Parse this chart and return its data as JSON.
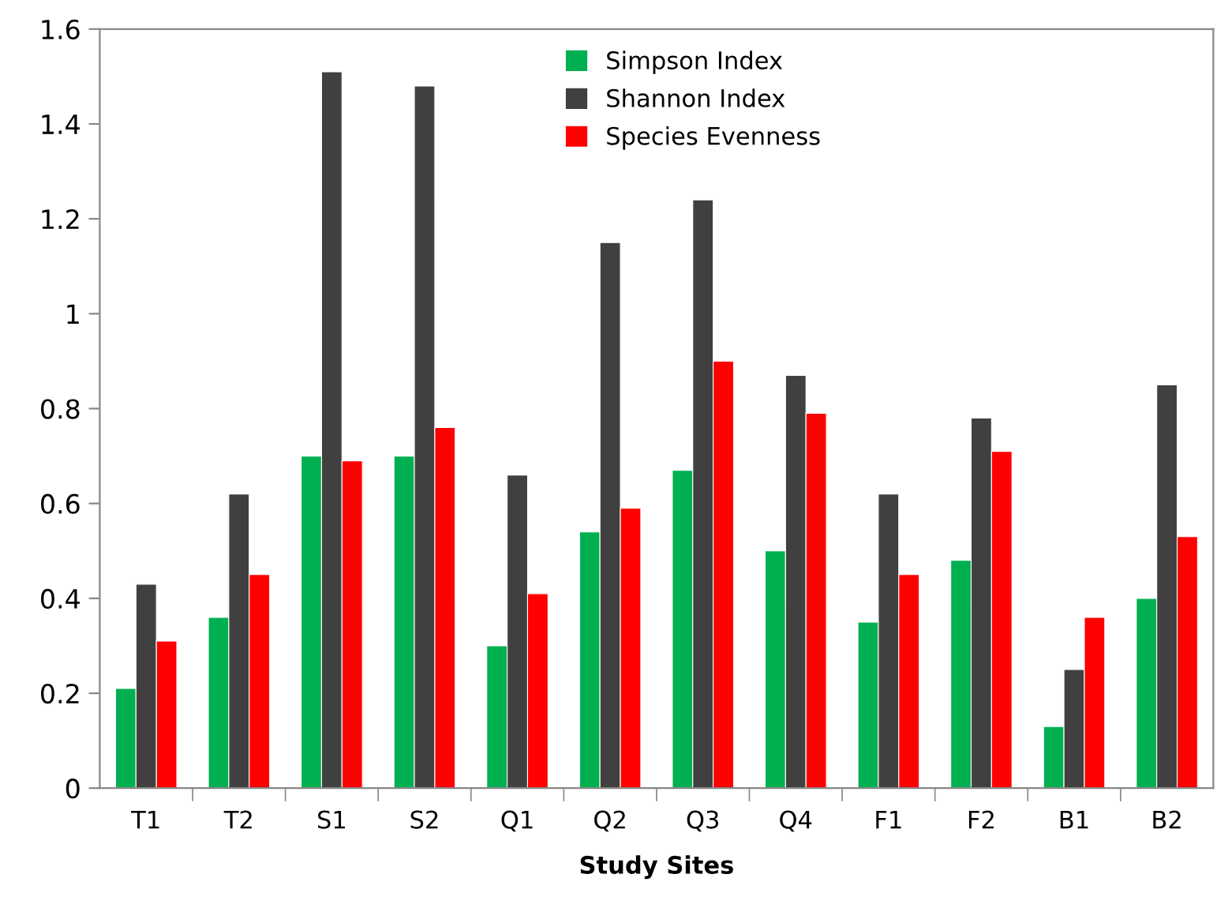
{
  "chart_data": {
    "type": "bar",
    "xlabel": "Study Sites",
    "categories": [
      "T1",
      "T2",
      "S1",
      "S2",
      "Q1",
      "Q2",
      "Q3",
      "Q4",
      "F1",
      "F2",
      "B1",
      "B2"
    ],
    "series": [
      {
        "name": "Simpson Index",
        "color": "#00b050",
        "values": [
          0.21,
          0.36,
          0.7,
          0.7,
          0.3,
          0.54,
          0.67,
          0.5,
          0.35,
          0.48,
          0.13,
          0.4
        ]
      },
      {
        "name": "Shannon Index",
        "color": "#404040",
        "values": [
          0.43,
          0.62,
          1.51,
          1.48,
          0.66,
          1.15,
          1.24,
          0.87,
          0.62,
          0.78,
          0.25,
          0.85
        ]
      },
      {
        "name": "Species Evenness",
        "color": "#ff0000",
        "values": [
          0.31,
          0.45,
          0.69,
          0.76,
          0.41,
          0.59,
          0.9,
          0.79,
          0.45,
          0.71,
          0.36,
          0.53
        ]
      }
    ],
    "ylim": [
      0,
      1.6
    ],
    "yticks": [
      0,
      0.2,
      0.4,
      0.6,
      0.8,
      1,
      1.2,
      1.4,
      1.6
    ],
    "grid": false,
    "legend": "top"
  }
}
